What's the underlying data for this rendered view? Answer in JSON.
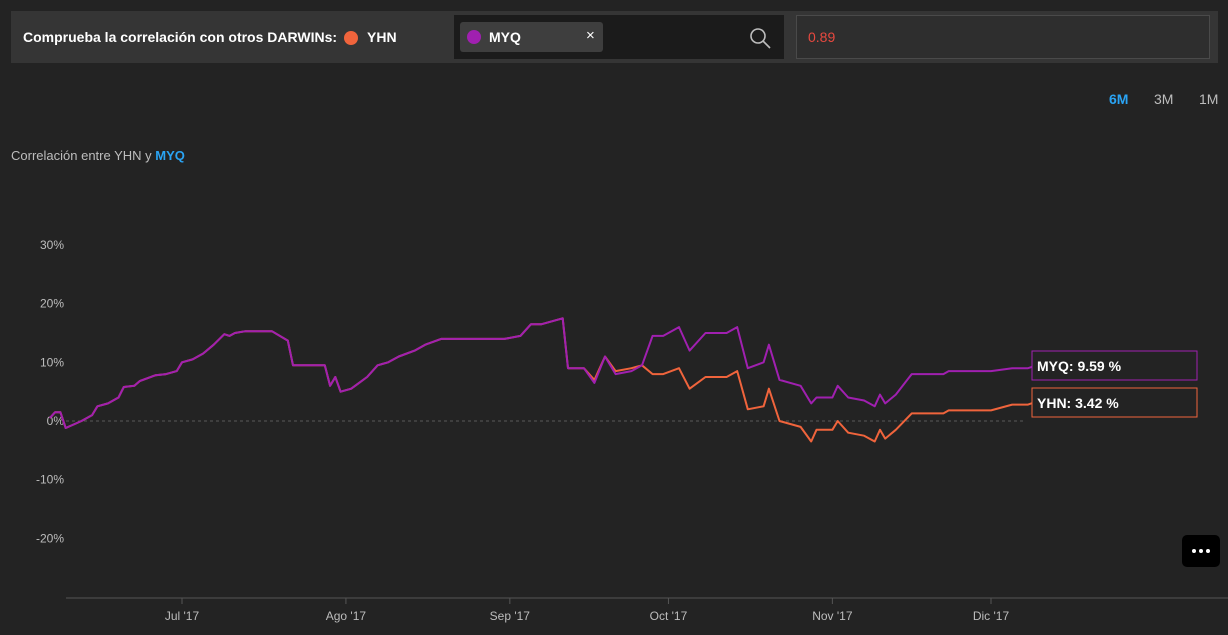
{
  "header": {
    "label": "Comprueba la correlación con otros DARWINs:",
    "reference": {
      "name": "YHN",
      "color": "#f0643c"
    },
    "selected_chip": {
      "name": "MYQ",
      "color": "#a020b0",
      "close_glyph": "×"
    },
    "search_icon": "search-icon",
    "correlation_value": "0.89",
    "correlation_color": "#e8493f"
  },
  "ranges": {
    "items": [
      "6M",
      "3M",
      "1M"
    ],
    "active": "6M"
  },
  "chart_title": {
    "prefix": "Correlación entre YHN y ",
    "accent": "MYQ"
  },
  "more_button": {
    "icon": "more-dots-icon"
  },
  "chart_data": {
    "type": "line",
    "y_tick_labels": [
      "30%",
      "20%",
      "10%",
      "0%",
      "-10%",
      "-20%"
    ],
    "y_ticks": [
      30,
      20,
      10,
      0,
      -10,
      -20
    ],
    "ylim": [
      -30,
      30
    ],
    "zero_line": "dashed",
    "x_tick_labels": [
      "Jul '17",
      "Ago '17",
      "Sep '17",
      "Oct '17",
      "Nov '17",
      "Dic '17"
    ],
    "x_domain": [
      "2017-06-06",
      "2017-12-31"
    ],
    "x_tick_dates": [
      "2017-07-01",
      "2017-08-01",
      "2017-09-01",
      "2017-10-01",
      "2017-11-01",
      "2017-12-01"
    ],
    "series": [
      {
        "name": "MYQ",
        "color": "#a020b0",
        "end_label": "MYQ: 9.59 %",
        "points": [
          [
            "2017-06-06",
            0.5
          ],
          [
            "2017-06-07",
            1.5
          ],
          [
            "2017-06-08",
            1.5
          ],
          [
            "2017-06-09",
            -1.2
          ],
          [
            "2017-06-12",
            0.0
          ],
          [
            "2017-06-14",
            1.0
          ],
          [
            "2017-06-15",
            2.5
          ],
          [
            "2017-06-17",
            3.0
          ],
          [
            "2017-06-19",
            4.0
          ],
          [
            "2017-06-20",
            5.8
          ],
          [
            "2017-06-22",
            6.0
          ],
          [
            "2017-06-23",
            6.8
          ],
          [
            "2017-06-26",
            7.8
          ],
          [
            "2017-06-28",
            8.0
          ],
          [
            "2017-06-30",
            8.5
          ],
          [
            "2017-07-01",
            10.0
          ],
          [
            "2017-07-03",
            10.5
          ],
          [
            "2017-07-05",
            11.5
          ],
          [
            "2017-07-07",
            13.0
          ],
          [
            "2017-07-09",
            14.8
          ],
          [
            "2017-07-10",
            14.5
          ],
          [
            "2017-07-11",
            15.0
          ],
          [
            "2017-07-13",
            15.3
          ],
          [
            "2017-07-18",
            15.3
          ],
          [
            "2017-07-21",
            13.7
          ],
          [
            "2017-07-22",
            9.5
          ],
          [
            "2017-07-28",
            9.5
          ],
          [
            "2017-07-29",
            6.0
          ],
          [
            "2017-07-30",
            7.5
          ],
          [
            "2017-07-31",
            5.0
          ],
          [
            "2017-08-02",
            5.5
          ],
          [
            "2017-08-05",
            7.5
          ],
          [
            "2017-08-07",
            9.5
          ],
          [
            "2017-08-09",
            10.0
          ],
          [
            "2017-08-11",
            11.0
          ],
          [
            "2017-08-14",
            12.0
          ],
          [
            "2017-08-16",
            13.0
          ],
          [
            "2017-08-19",
            14.0
          ],
          [
            "2017-08-31",
            14.0
          ],
          [
            "2017-09-03",
            14.5
          ],
          [
            "2017-09-05",
            16.5
          ],
          [
            "2017-09-07",
            16.5
          ],
          [
            "2017-09-11",
            17.5
          ],
          [
            "2017-09-12",
            9.0
          ],
          [
            "2017-09-15",
            9.0
          ],
          [
            "2017-09-17",
            6.5
          ],
          [
            "2017-09-19",
            11.0
          ],
          [
            "2017-09-21",
            8.0
          ],
          [
            "2017-09-24",
            8.5
          ],
          [
            "2017-09-26",
            9.5
          ],
          [
            "2017-09-28",
            14.5
          ],
          [
            "2017-09-30",
            14.5
          ],
          [
            "2017-10-03",
            16.0
          ],
          [
            "2017-10-05",
            12.0
          ],
          [
            "2017-10-08",
            15.0
          ],
          [
            "2017-10-12",
            15.0
          ],
          [
            "2017-10-14",
            16.0
          ],
          [
            "2017-10-16",
            9.0
          ],
          [
            "2017-10-19",
            10.0
          ],
          [
            "2017-10-20",
            13.0
          ],
          [
            "2017-10-22",
            7.0
          ],
          [
            "2017-10-26",
            6.0
          ],
          [
            "2017-10-28",
            3.0
          ],
          [
            "2017-10-29",
            4.0
          ],
          [
            "2017-11-01",
            4.0
          ],
          [
            "2017-11-02",
            6.0
          ],
          [
            "2017-11-04",
            4.0
          ],
          [
            "2017-11-07",
            3.5
          ],
          [
            "2017-11-09",
            2.5
          ],
          [
            "2017-11-10",
            4.5
          ],
          [
            "2017-11-11",
            3.0
          ],
          [
            "2017-11-13",
            4.5
          ],
          [
            "2017-11-16",
            8.0
          ],
          [
            "2017-11-22",
            8.0
          ],
          [
            "2017-11-23",
            8.5
          ],
          [
            "2017-12-01",
            8.5
          ],
          [
            "2017-12-05",
            9.0
          ],
          [
            "2017-12-08",
            9.0
          ],
          [
            "2017-12-10",
            9.59
          ]
        ]
      },
      {
        "name": "YHN",
        "color": "#f0643c",
        "end_label": "YHN: 3.42 %",
        "points": [
          [
            "2017-06-06",
            0.5
          ],
          [
            "2017-06-07",
            1.5
          ],
          [
            "2017-06-08",
            1.5
          ],
          [
            "2017-06-09",
            -1.2
          ],
          [
            "2017-06-12",
            0.0
          ],
          [
            "2017-06-14",
            1.0
          ],
          [
            "2017-06-15",
            2.5
          ],
          [
            "2017-06-17",
            3.0
          ],
          [
            "2017-06-19",
            4.0
          ],
          [
            "2017-06-20",
            5.8
          ],
          [
            "2017-06-22",
            6.0
          ],
          [
            "2017-06-23",
            6.8
          ],
          [
            "2017-06-26",
            7.8
          ],
          [
            "2017-06-28",
            8.0
          ],
          [
            "2017-06-30",
            8.5
          ],
          [
            "2017-07-01",
            10.0
          ],
          [
            "2017-07-03",
            10.5
          ],
          [
            "2017-07-05",
            11.5
          ],
          [
            "2017-07-07",
            13.0
          ],
          [
            "2017-07-09",
            14.8
          ],
          [
            "2017-07-10",
            14.5
          ],
          [
            "2017-07-11",
            15.0
          ],
          [
            "2017-07-13",
            15.3
          ],
          [
            "2017-07-18",
            15.3
          ],
          [
            "2017-07-21",
            13.7
          ],
          [
            "2017-07-22",
            9.5
          ],
          [
            "2017-07-28",
            9.5
          ],
          [
            "2017-07-29",
            6.0
          ],
          [
            "2017-07-30",
            7.5
          ],
          [
            "2017-07-31",
            5.0
          ],
          [
            "2017-08-02",
            5.5
          ],
          [
            "2017-08-05",
            7.5
          ],
          [
            "2017-08-07",
            9.5
          ],
          [
            "2017-08-09",
            10.0
          ],
          [
            "2017-08-11",
            11.0
          ],
          [
            "2017-08-14",
            12.0
          ],
          [
            "2017-08-16",
            13.0
          ],
          [
            "2017-08-19",
            14.0
          ],
          [
            "2017-08-31",
            14.0
          ],
          [
            "2017-09-03",
            14.5
          ],
          [
            "2017-09-05",
            16.5
          ],
          [
            "2017-09-07",
            16.5
          ],
          [
            "2017-09-11",
            17.5
          ],
          [
            "2017-09-12",
            9.0
          ],
          [
            "2017-09-15",
            9.0
          ],
          [
            "2017-09-17",
            7.0
          ],
          [
            "2017-09-19",
            11.0
          ],
          [
            "2017-09-21",
            8.5
          ],
          [
            "2017-09-24",
            9.0
          ],
          [
            "2017-09-26",
            9.5
          ],
          [
            "2017-09-28",
            8.0
          ],
          [
            "2017-09-30",
            8.0
          ],
          [
            "2017-10-03",
            9.0
          ],
          [
            "2017-10-05",
            5.5
          ],
          [
            "2017-10-08",
            7.5
          ],
          [
            "2017-10-12",
            7.5
          ],
          [
            "2017-10-14",
            8.5
          ],
          [
            "2017-10-16",
            2.0
          ],
          [
            "2017-10-19",
            2.5
          ],
          [
            "2017-10-20",
            5.5
          ],
          [
            "2017-10-22",
            0.0
          ],
          [
            "2017-10-26",
            -1.0
          ],
          [
            "2017-10-28",
            -3.5
          ],
          [
            "2017-10-29",
            -1.5
          ],
          [
            "2017-11-01",
            -1.5
          ],
          [
            "2017-11-02",
            0.0
          ],
          [
            "2017-11-04",
            -2.0
          ],
          [
            "2017-11-07",
            -2.5
          ],
          [
            "2017-11-09",
            -3.5
          ],
          [
            "2017-11-10",
            -1.5
          ],
          [
            "2017-11-11",
            -3.0
          ],
          [
            "2017-11-13",
            -1.5
          ],
          [
            "2017-11-16",
            1.3
          ],
          [
            "2017-11-22",
            1.3
          ],
          [
            "2017-11-23",
            1.8
          ],
          [
            "2017-12-01",
            1.8
          ],
          [
            "2017-12-05",
            2.8
          ],
          [
            "2017-12-08",
            2.8
          ],
          [
            "2017-12-10",
            3.42
          ]
        ]
      }
    ]
  }
}
